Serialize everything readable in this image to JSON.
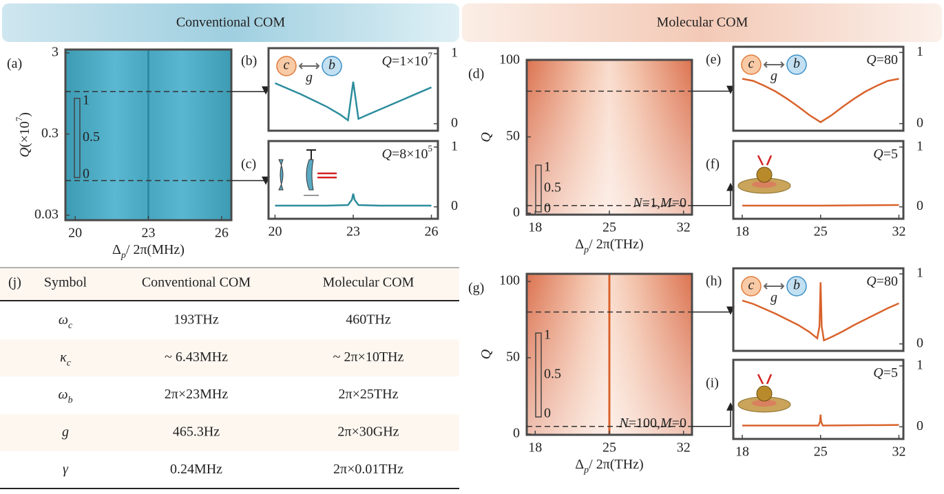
{
  "headers": [
    "Conventional COM",
    "Molecular COM"
  ],
  "heatmaps": [
    {
      "label": "(a)",
      "style": "conventional",
      "xlim": [
        19.6,
        26.4
      ],
      "xticks": [
        20,
        23,
        26
      ],
      "ylim": [
        0.026,
        3.3
      ],
      "yticks": [
        0.03,
        0.3,
        3
      ],
      "log_y": true,
      "ylabel": [
        "Q",
        "(×10",
        "7",
        ")"
      ],
      "xlabel": [
        "Δ",
        "p",
        "/ 2π",
        "(MHz)"
      ],
      "cuts": [
        1,
        0.08
      ],
      "colorbar_ticks": [
        1,
        0.5,
        0
      ],
      "ridge": 23
    },
    {
      "label": "(d)",
      "style": "molecular",
      "xlim": [
        17.2,
        32.8
      ],
      "xticks": [
        18,
        25,
        32
      ],
      "ylim": [
        -1,
        100.5
      ],
      "yticks": [
        0,
        50,
        100
      ],
      "log_y": false,
      "ylabel": [
        "Q"
      ],
      "xlabel": [
        "Δ",
        "p",
        "/ 2π",
        "(THz)"
      ],
      "cuts": [
        80,
        5
      ],
      "colorbar_ticks": [
        1,
        0.5,
        0
      ],
      "note": [
        "N",
        "=1,",
        "M",
        "=0"
      ]
    },
    {
      "label": "(g)",
      "style": "molecular",
      "xlim": [
        17.2,
        32.8
      ],
      "xticks": [
        18,
        25,
        32
      ],
      "ylim": [
        -0.5,
        105
      ],
      "yticks": [
        0,
        50,
        100
      ],
      "log_y": false,
      "ylabel": [
        "Q"
      ],
      "xlabel": [
        "Δ",
        "p",
        "/ 2π",
        "(THz)"
      ],
      "cuts": [
        80,
        5
      ],
      "colorbar_ticks": [
        1,
        0.5,
        0
      ],
      "ridge": 25,
      "note": [
        "N",
        "=100,",
        "M",
        "=0"
      ]
    }
  ],
  "lines": [
    {
      "label": "(b)",
      "color": "#2b8c9c",
      "xlim": [
        19.75,
        26.25
      ],
      "ylim": [
        -0.1,
        1.08
      ],
      "yticks": [
        0,
        1
      ],
      "annotation": [
        "Q",
        "=1×10",
        "7"
      ],
      "inset": [
        "c",
        "g",
        "b"
      ],
      "x": [
        20,
        20.5,
        21,
        21.5,
        22,
        22.5,
        22.8,
        23,
        23.2,
        23.5,
        24,
        24.5,
        25,
        25.5,
        26
      ],
      "values": [
        0.58,
        0.5,
        0.42,
        0.33,
        0.24,
        0.13,
        0.05,
        0.6,
        0.07,
        0.12,
        0.2,
        0.28,
        0.36,
        0.44,
        0.52
      ]
    },
    {
      "label": "(c)",
      "color": "#2b8c9c",
      "xlim": [
        19.75,
        26.25
      ],
      "xticks": [
        20,
        23,
        26
      ],
      "ylim": [
        -0.2,
        1.1
      ],
      "yticks": [
        0,
        1
      ],
      "annotation": [
        "Q",
        "=8×10",
        "5"
      ],
      "x": [
        20,
        22,
        22.8,
        22.95,
        23,
        23.05,
        23.2,
        24,
        26
      ],
      "values": [
        0.02,
        0.02,
        0.03,
        0.12,
        0.22,
        0.12,
        0.03,
        0.02,
        0.02
      ]
    },
    {
      "label": "(e)",
      "color": "#d9622b",
      "xlim": [
        17.2,
        32.4
      ],
      "ylim": [
        -0.1,
        1.08
      ],
      "yticks": [
        0,
        1
      ],
      "annotation": [
        "Q",
        "=80"
      ],
      "inset": [
        "c",
        "g",
        "b"
      ],
      "x": [
        18,
        19,
        20,
        21,
        22,
        23,
        24,
        25,
        26,
        27,
        28,
        29,
        30,
        31,
        32
      ],
      "values": [
        0.63,
        0.6,
        0.53,
        0.45,
        0.35,
        0.24,
        0.12,
        0.02,
        0.12,
        0.24,
        0.35,
        0.45,
        0.53,
        0.6,
        0.63
      ]
    },
    {
      "label": "(f)",
      "color": "#d9622b",
      "xlim": [
        17.2,
        32.4
      ],
      "xticks": [
        18,
        25,
        32
      ],
      "ylim": [
        -0.2,
        1.1
      ],
      "yticks": [
        0,
        1
      ],
      "annotation": [
        "Q",
        "=5"
      ],
      "x": [
        18,
        25,
        32
      ],
      "values": [
        0.02,
        0.02,
        0.03
      ]
    },
    {
      "label": "(h)",
      "color": "#d9622b",
      "xlim": [
        17.2,
        32.4
      ],
      "ylim": [
        -0.1,
        1.08
      ],
      "yticks": [
        0,
        1
      ],
      "annotation": [
        "Q",
        "=80"
      ],
      "inset": [
        "c",
        "g",
        "b"
      ],
      "x": [
        18,
        19,
        20,
        21,
        22,
        23,
        24,
        24.7,
        24.9,
        25,
        25.1,
        25.3,
        26,
        27,
        28,
        29,
        30,
        31,
        32
      ],
      "values": [
        0.62,
        0.57,
        0.5,
        0.43,
        0.35,
        0.27,
        0.17,
        0.08,
        0.25,
        0.88,
        0.25,
        0.05,
        0.1,
        0.18,
        0.27,
        0.35,
        0.43,
        0.51,
        0.58
      ]
    },
    {
      "label": "(i)",
      "color": "#d9622b",
      "xlim": [
        17.2,
        32.4
      ],
      "xticks": [
        18,
        25,
        32
      ],
      "ylim": [
        -0.2,
        1.1
      ],
      "yticks": [
        0,
        1
      ],
      "annotation": [
        "Q",
        "=5"
      ],
      "x": [
        18,
        24.8,
        24.95,
        25,
        25.05,
        25.2,
        32
      ],
      "values": [
        0.02,
        0.02,
        0.08,
        0.2,
        0.08,
        0.02,
        0.03
      ]
    }
  ],
  "table": {
    "label": "(j)",
    "header": [
      "Symbol",
      "Conventional COM",
      "Molecular COM"
    ],
    "rows": [
      [
        [
          "ω",
          "c"
        ],
        "193THz",
        "460THz"
      ],
      [
        [
          "κ",
          "c"
        ],
        "~ 6.43MHz",
        "~ 2π×10THz"
      ],
      [
        [
          "ω",
          "b"
        ],
        "2π×23MHz",
        "2π×25THz"
      ],
      [
        [
          "g"
        ],
        "465.3Hz",
        "2π×30GHz"
      ],
      [
        [
          "γ"
        ],
        "0.24MHz",
        "2π×0.01THz"
      ]
    ]
  }
}
